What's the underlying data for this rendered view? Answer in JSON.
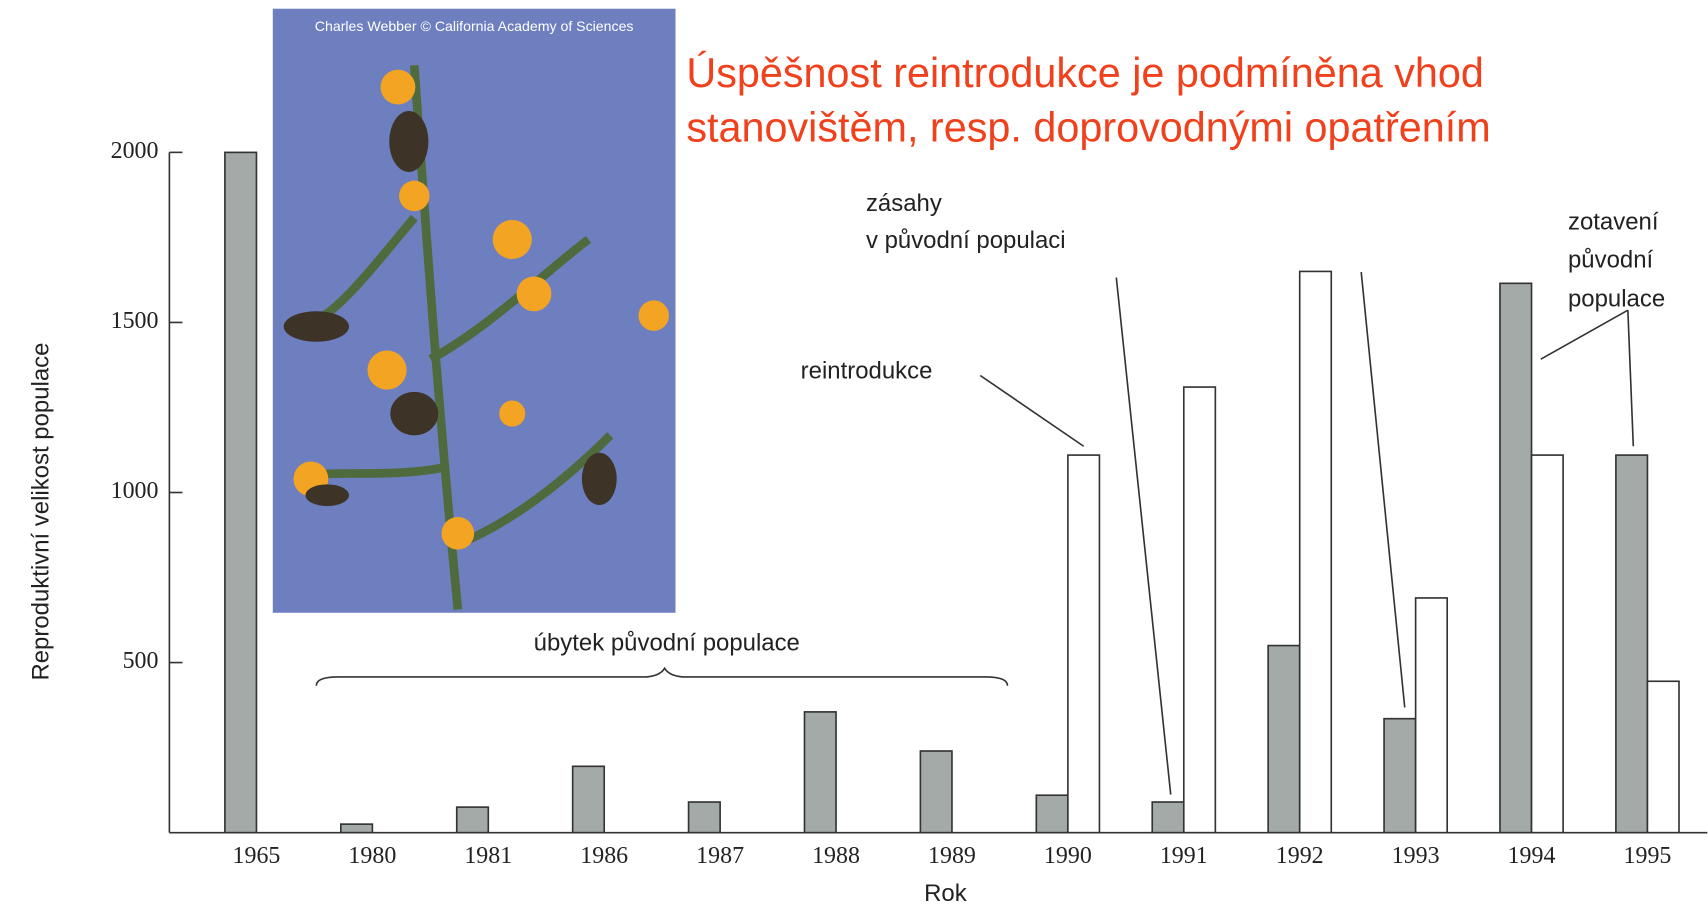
{
  "chart_data": {
    "type": "bar",
    "title": [
      "Úspěšnost reintrodukce je podmíněna vhod",
      "stanovištěm, resp. doprovodnými opatřením"
    ],
    "photo_credit": "Charles Webber © California Academy of Sciences",
    "y_label": "Reproduktivní velikost populace",
    "x_label": "Rok",
    "categories": [
      "1965",
      "1980",
      "1981",
      "1986",
      "1987",
      "1988",
      "1989",
      "1990",
      "1991",
      "1992",
      "1993",
      "1994",
      "1995"
    ],
    "series": [
      {
        "color": "#a3aaa8",
        "values": [
          2000,
          25,
          75,
          195,
          90,
          355,
          240,
          110,
          90,
          550,
          335,
          1615,
          1110
        ]
      },
      {
        "color": "#ffffff",
        "values": [
          null,
          null,
          null,
          null,
          null,
          null,
          null,
          1110,
          1310,
          1650,
          690,
          1110,
          445
        ]
      }
    ],
    "ylim": [
      0,
      2000
    ],
    "yticks": [
      500,
      1000,
      1500,
      2000
    ],
    "annotations": [
      "zásahy",
      "v původní populaci",
      "reintrodukce",
      "zotavení",
      "původní",
      "populace",
      "úbytek původní populace"
    ]
  }
}
